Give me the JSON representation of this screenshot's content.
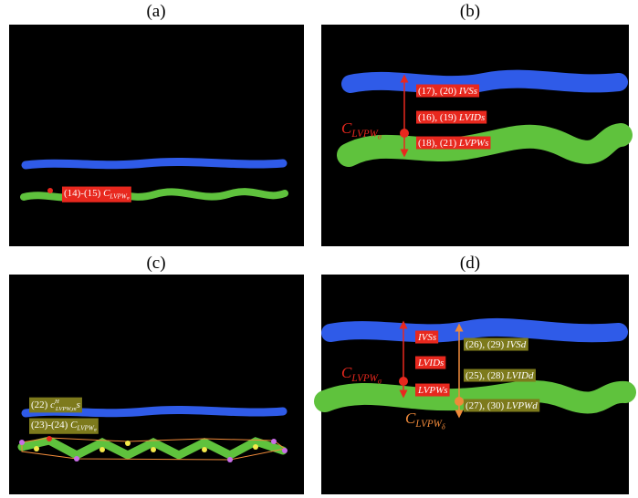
{
  "panels": [
    {
      "label": "(a)",
      "annotations": [
        {
          "prefix": "(14)-(15) ",
          "symbol": "C",
          "sub": "LVPW",
          "subsub": "σ"
        }
      ]
    },
    {
      "label": "(b)",
      "annotations": [
        {
          "prefix": "(17), (20) ",
          "term": "IVSs"
        },
        {
          "prefix": "(16), (19) ",
          "term": "LVIDs"
        },
        {
          "prefix": "(18), (21) ",
          "term": "LVPWs"
        },
        {
          "symbol": "C",
          "sub": "LVPW",
          "subsub": "σ"
        }
      ]
    },
    {
      "label": "(c)",
      "annotations": [
        {
          "prefix": "(22) ",
          "symbol": "c",
          "sup": "H",
          "sub": "LVPW,m",
          "suffix": "s"
        },
        {
          "prefix": "(23)-(24) ",
          "symbol": "C",
          "sub": "LVPW",
          "subsub": "σ"
        }
      ]
    },
    {
      "label": "(d)",
      "annotations": [
        {
          "term": "IVSs"
        },
        {
          "term": "LVIDs"
        },
        {
          "term": "LVPWs"
        },
        {
          "prefix": "(26), (29) ",
          "term": "IVSd"
        },
        {
          "prefix": "(25), (28) ",
          "term": "LVIDd"
        },
        {
          "prefix": "(27), (30) ",
          "term": "LVPWd"
        },
        {
          "symbol": "C",
          "sub": "LVPW",
          "subsub": "σ"
        },
        {
          "symbol": "C",
          "sub": "LVPW",
          "subsub": "δ"
        }
      ]
    }
  ]
}
